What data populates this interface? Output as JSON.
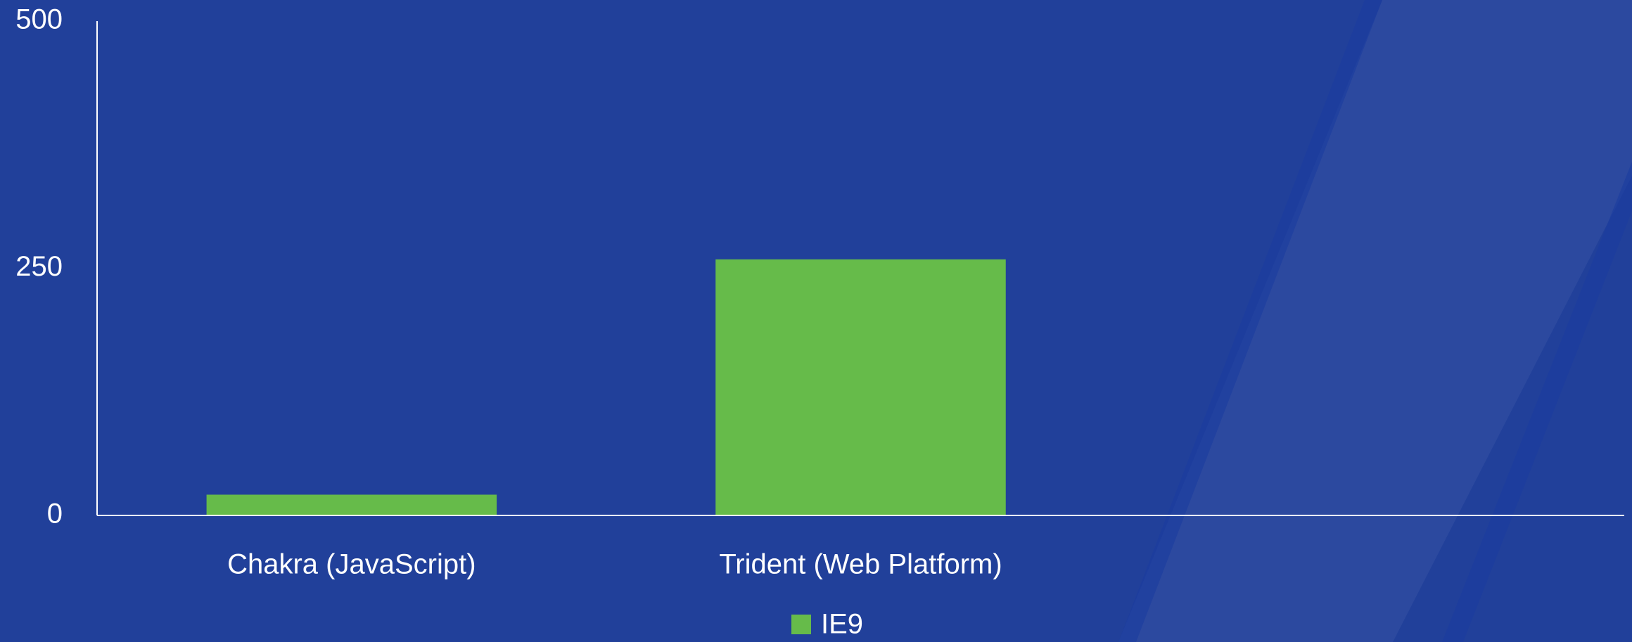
{
  "chart_data": {
    "type": "bar",
    "categories": [
      "Chakra (JavaScript)",
      "Trident (Web Platform)",
      null
    ],
    "series": [
      {
        "name": "IE9",
        "color": "#66bb4a",
        "values": [
          21,
          259,
          null
        ]
      }
    ],
    "ylim": [
      0,
      500
    ],
    "yticks": [
      0,
      250,
      500
    ],
    "grid": false,
    "legend": "bottom"
  }
}
